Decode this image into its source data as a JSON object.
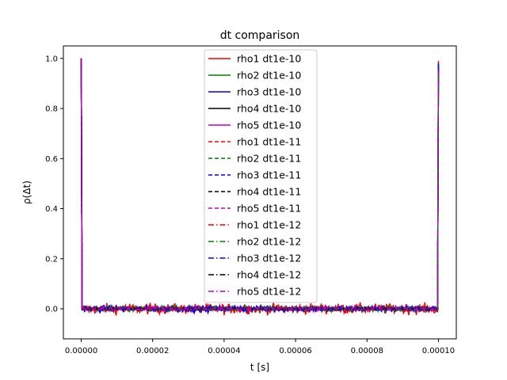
{
  "chart_data": {
    "type": "line",
    "title": "dt comparison",
    "xlabel": "t [s]",
    "ylabel": "ρ(Δt)",
    "xlim": [
      -5e-06,
      0.000105
    ],
    "ylim": [
      -0.12,
      1.05
    ],
    "xticks": [
      0.0,
      2e-05,
      4e-05,
      6e-05,
      8e-05,
      0.0001
    ],
    "xtick_labels": [
      "0.00000",
      "0.00002",
      "0.00004",
      "0.00006",
      "0.00008",
      "0.00010"
    ],
    "yticks": [
      0.0,
      0.2,
      0.4,
      0.6,
      0.8,
      1.0
    ],
    "ytick_labels": [
      "0.0",
      "0.2",
      "0.4",
      "0.6",
      "0.8",
      "1.0"
    ],
    "grid": false,
    "legend_position": "top-center",
    "x_start": 0.0,
    "x_end": 0.0001,
    "series": [
      {
        "name": "rho1 dt1e-10",
        "color": "#ff0000",
        "style": "solid",
        "peak_start": 1.0,
        "peak_end": 0.99,
        "noise_amplitude": 0.035
      },
      {
        "name": "rho2 dt1e-10",
        "color": "#008000",
        "style": "solid",
        "peak_start": 1.0,
        "peak_end": 0.98,
        "noise_amplitude": 0.02
      },
      {
        "name": "rho3 dt1e-10",
        "color": "#0000ff",
        "style": "solid",
        "peak_start": 1.0,
        "peak_end": 0.98,
        "noise_amplitude": 0.022
      },
      {
        "name": "rho4 dt1e-10",
        "color": "#000000",
        "style": "solid",
        "peak_start": 1.0,
        "peak_end": 0.0,
        "noise_amplitude": 0.008
      },
      {
        "name": "rho5 dt1e-10",
        "color": "#bf00bf",
        "style": "solid",
        "peak_start": 1.0,
        "peak_end": 0.97,
        "noise_amplitude": 0.012
      },
      {
        "name": "rho1 dt1e-11",
        "color": "#ff0000",
        "style": "dashed",
        "peak_start": 1.0,
        "peak_end": 0.97,
        "noise_amplitude": 0.015
      },
      {
        "name": "rho2 dt1e-11",
        "color": "#008000",
        "style": "dashed",
        "peak_start": 1.0,
        "peak_end": 0.97,
        "noise_amplitude": 0.01
      },
      {
        "name": "rho3 dt1e-11",
        "color": "#0000ff",
        "style": "dashed",
        "peak_start": 1.0,
        "peak_end": 0.97,
        "noise_amplitude": 0.012
      },
      {
        "name": "rho4 dt1e-11",
        "color": "#000000",
        "style": "dashed",
        "peak_start": 1.0,
        "peak_end": 0.0,
        "noise_amplitude": 0.006
      },
      {
        "name": "rho5 dt1e-11",
        "color": "#bf00bf",
        "style": "dashed",
        "peak_start": 1.0,
        "peak_end": 0.96,
        "noise_amplitude": 0.01
      },
      {
        "name": "rho1 dt1e-12",
        "color": "#ff0000",
        "style": "dashdot",
        "peak_start": 1.0,
        "peak_end": 0.96,
        "noise_amplitude": 0.012
      },
      {
        "name": "rho2 dt1e-12",
        "color": "#008000",
        "style": "dashdot",
        "peak_start": 1.0,
        "peak_end": 0.96,
        "noise_amplitude": 0.01
      },
      {
        "name": "rho3 dt1e-12",
        "color": "#0000ff",
        "style": "dashdot",
        "peak_start": 1.0,
        "peak_end": 0.96,
        "noise_amplitude": 0.012
      },
      {
        "name": "rho4 dt1e-12",
        "color": "#000000",
        "style": "dashdot",
        "peak_start": 1.0,
        "peak_end": 0.0,
        "noise_amplitude": 0.006
      },
      {
        "name": "rho5 dt1e-12",
        "color": "#bf00bf",
        "style": "dashdot",
        "peak_start": 1.0,
        "peak_end": 0.95,
        "noise_amplitude": 0.008
      }
    ]
  }
}
